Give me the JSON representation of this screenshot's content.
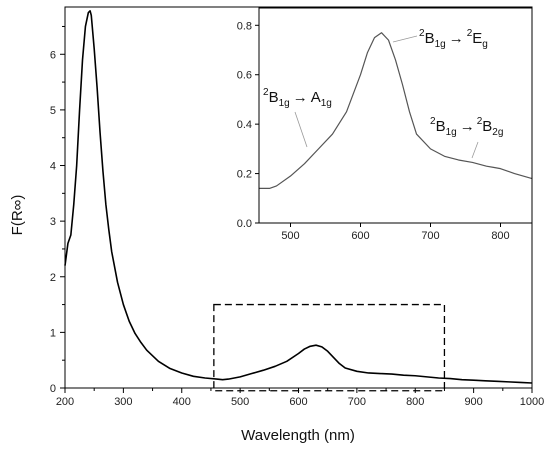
{
  "chart_data": [
    {
      "type": "line",
      "xlabel": "Wavelength (nm)",
      "ylabel": "F(R∞)",
      "xlim": [
        200,
        1000
      ],
      "ylim": [
        0,
        6.85
      ],
      "xticks": [
        "200",
        "300",
        "400",
        "500",
        "600",
        "700",
        "800",
        "900",
        "1000"
      ],
      "yticks": [
        "0",
        "1",
        "2",
        "3",
        "4",
        "5",
        "6"
      ],
      "grid": false,
      "legend": "none",
      "series": [
        {
          "color": "#000000",
          "x": [
            200,
            205,
            210,
            215,
            220,
            225,
            230,
            235,
            240,
            243,
            245,
            250,
            255,
            260,
            265,
            270,
            275,
            280,
            290,
            300,
            310,
            320,
            330,
            340,
            360,
            380,
            400,
            420,
            440,
            460,
            470,
            480,
            500,
            520,
            540,
            560,
            580,
            600,
            610,
            620,
            630,
            640,
            650,
            660,
            670,
            680,
            700,
            720,
            740,
            760,
            780,
            800,
            820,
            840,
            860,
            880,
            900,
            920,
            940,
            960,
            980,
            1000
          ],
          "y": [
            2.2,
            2.6,
            2.75,
            3.3,
            4.0,
            5.0,
            5.9,
            6.5,
            6.75,
            6.78,
            6.7,
            6.1,
            5.4,
            4.6,
            3.9,
            3.3,
            2.85,
            2.45,
            1.9,
            1.5,
            1.2,
            0.98,
            0.82,
            0.68,
            0.48,
            0.35,
            0.27,
            0.21,
            0.18,
            0.16,
            0.15,
            0.16,
            0.2,
            0.26,
            0.32,
            0.39,
            0.48,
            0.62,
            0.7,
            0.75,
            0.77,
            0.74,
            0.66,
            0.55,
            0.44,
            0.36,
            0.3,
            0.27,
            0.26,
            0.25,
            0.23,
            0.22,
            0.2,
            0.18,
            0.17,
            0.15,
            0.14,
            0.13,
            0.12,
            0.11,
            0.1,
            0.09
          ]
        }
      ],
      "zoom_box": {
        "x": [
          455,
          850
        ],
        "y": [
          -0.05,
          1.5
        ]
      }
    },
    {
      "type": "line",
      "inset": true,
      "xlim": [
        455,
        845
      ],
      "ylim": [
        0,
        0.87
      ],
      "xticks": [
        "500",
        "600",
        "700",
        "800"
      ],
      "yticks": [
        "0.0",
        "0.2",
        "0.4",
        "0.6",
        "0.8"
      ],
      "grid": false,
      "series": [
        {
          "color": "#555555",
          "x": [
            455,
            470,
            480,
            500,
            520,
            540,
            560,
            580,
            600,
            610,
            620,
            630,
            640,
            650,
            660,
            670,
            680,
            700,
            720,
            740,
            760,
            780,
            790,
            800,
            820,
            845
          ],
          "y": [
            0.14,
            0.14,
            0.15,
            0.19,
            0.24,
            0.3,
            0.36,
            0.45,
            0.6,
            0.69,
            0.75,
            0.77,
            0.74,
            0.66,
            0.56,
            0.45,
            0.36,
            0.3,
            0.27,
            0.255,
            0.245,
            0.23,
            0.225,
            0.22,
            0.2,
            0.18
          ]
        }
      ],
      "annotations": [
        {
          "id": "a1",
          "main": "B",
          "pre_sup": "2",
          "sub": "1g",
          "arrow": "→",
          "target": "A",
          "target_sub": "1g"
        },
        {
          "id": "e",
          "main": "B",
          "pre_sup": "2",
          "sub": "1g",
          "arrow": "→",
          "target": "E",
          "target_pre_sup": "2",
          "target_sub": "g"
        },
        {
          "id": "b2",
          "main": "B",
          "pre_sup": "2",
          "sub": "1g",
          "arrow": "→",
          "target": "B",
          "target_pre_sup": "2",
          "target_sub": "2g"
        }
      ]
    }
  ]
}
